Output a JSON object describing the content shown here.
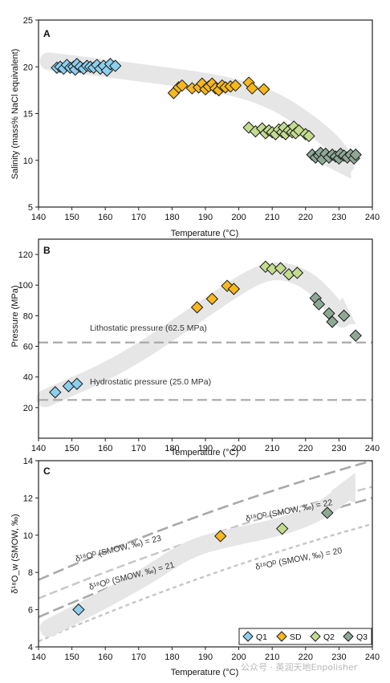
{
  "colors": {
    "Q1": "#8ccfee",
    "SD": "#f6b81c",
    "Q2": "#c3dc8f",
    "Q3": "#8ea896",
    "arrow": "#e6e6e6",
    "dash_dark": "#a9a9a9",
    "dash_light": "#c6c6c6"
  },
  "watermark": "公众号 · 英润天地Enpolisher",
  "chart_data": [
    {
      "panel": "A",
      "type": "scatter",
      "xlabel": "Temperature (°C)",
      "ylabel": "Salinity (mass% NaCl equivalent)",
      "xlim": [
        140,
        240
      ],
      "ylim": [
        5,
        25
      ],
      "xticks": [
        140,
        150,
        160,
        170,
        180,
        190,
        200,
        210,
        220,
        230,
        240
      ],
      "yticks": [
        5,
        10,
        15,
        20,
        25
      ],
      "series": [
        {
          "name": "Q1",
          "points": [
            [
              145.5,
              19.9
            ],
            [
              146.5,
              20.0
            ],
            [
              147.5,
              19.8
            ],
            [
              148.5,
              20.2
            ],
            [
              149.5,
              19.9
            ],
            [
              150.5,
              20.0
            ],
            [
              151,
              19.7
            ],
            [
              151.5,
              20.3
            ],
            [
              152.5,
              20.0
            ],
            [
              153.5,
              19.8
            ],
            [
              154.5,
              20.1
            ],
            [
              155.5,
              20.0
            ],
            [
              156.5,
              19.9
            ],
            [
              157.5,
              20.2
            ],
            [
              158.5,
              19.8
            ],
            [
              159.5,
              20.1
            ],
            [
              160.5,
              19.6
            ],
            [
              161.5,
              20.3
            ],
            [
              163,
              20.1
            ]
          ]
        },
        {
          "name": "SD",
          "points": [
            [
              180.5,
              17.2
            ],
            [
              182,
              17.8
            ],
            [
              183,
              18.0
            ],
            [
              186,
              17.7
            ],
            [
              188,
              17.8
            ],
            [
              189,
              18.2
            ],
            [
              190,
              17.6
            ],
            [
              191,
              17.9
            ],
            [
              192,
              18.2
            ],
            [
              193,
              17.7
            ],
            [
              194,
              17.5
            ],
            [
              195,
              18.0
            ],
            [
              196,
              17.8
            ],
            [
              197.5,
              17.9
            ],
            [
              199,
              18.0
            ],
            [
              203,
              18.3
            ],
            [
              204,
              17.7
            ],
            [
              207.5,
              17.6
            ]
          ]
        },
        {
          "name": "Q2",
          "points": [
            [
              203,
              13.5
            ],
            [
              205,
              13.1
            ],
            [
              207,
              13.4
            ],
            [
              208,
              12.9
            ],
            [
              209,
              13.2
            ],
            [
              210,
              13.0
            ],
            [
              211,
              12.8
            ],
            [
              212,
              13.3
            ],
            [
              213,
              13.0
            ],
            [
              213.5,
              13.5
            ],
            [
              214,
              12.8
            ],
            [
              215,
              13.2
            ],
            [
              216,
              13.0
            ],
            [
              216.5,
              13.6
            ],
            [
              217,
              12.9
            ],
            [
              218,
              13.2
            ],
            [
              220,
              12.8
            ],
            [
              221,
              12.6
            ]
          ]
        },
        {
          "name": "Q3",
          "points": [
            [
              222,
              10.6
            ],
            [
              223,
              10.3
            ],
            [
              224,
              10.5
            ],
            [
              224.5,
              10.8
            ],
            [
              225,
              10.1
            ],
            [
              226,
              10.7
            ],
            [
              227,
              10.3
            ],
            [
              228,
              10.6
            ],
            [
              229,
              10.4
            ],
            [
              230,
              10.2
            ],
            [
              230.5,
              10.7
            ],
            [
              231.5,
              10.5
            ],
            [
              232.5,
              10.3
            ],
            [
              233.5,
              10.6
            ],
            [
              234.5,
              10.2
            ],
            [
              235,
              10.6
            ]
          ]
        }
      ]
    },
    {
      "panel": "B",
      "type": "scatter",
      "xlabel": "Temperature (°C)",
      "ylabel": "Pressure (MPa)",
      "xlim": [
        140,
        240
      ],
      "ylim": [
        0,
        130
      ],
      "xticks": [
        140,
        150,
        160,
        170,
        180,
        190,
        200,
        210,
        220,
        230,
        240
      ],
      "yticks": [
        20,
        40,
        60,
        80,
        100,
        120
      ],
      "reference_lines": [
        {
          "label": "Lithostatic pressure (62.5 MPa)",
          "y": 62.5
        },
        {
          "label": "Hydrostatic pressure (25.0 MPa)",
          "y": 25.0
        }
      ],
      "series": [
        {
          "name": "Q1",
          "points": [
            [
              145,
              30
            ],
            [
              149,
              34
            ],
            [
              151.5,
              35.5
            ]
          ]
        },
        {
          "name": "SD",
          "points": [
            [
              187.5,
              85.5
            ],
            [
              192,
              91
            ],
            [
              196.5,
              99.5
            ],
            [
              198.5,
              97.5
            ]
          ]
        },
        {
          "name": "Q2",
          "points": [
            [
              208,
              112
            ],
            [
              210,
              110.5
            ],
            [
              212.5,
              111
            ],
            [
              215,
              107
            ],
            [
              217.5,
              108
            ]
          ]
        },
        {
          "name": "Q3",
          "points": [
            [
              223,
              91.5
            ],
            [
              224,
              87.5
            ],
            [
              227,
              81.5
            ],
            [
              228,
              76
            ],
            [
              231.5,
              80
            ],
            [
              235,
              67
            ]
          ]
        }
      ]
    },
    {
      "panel": "C",
      "type": "scatter",
      "xlabel": "Temperature (°C)",
      "ylabel": "δ¹⁸O_w (SMOW, ‰)",
      "xlim": [
        140,
        240
      ],
      "ylim": [
        4,
        14
      ],
      "xticks": [
        140,
        150,
        160,
        170,
        180,
        190,
        200,
        210,
        220,
        230,
        240
      ],
      "yticks": [
        4,
        6,
        8,
        10,
        12,
        14
      ],
      "isopleths": [
        {
          "label": "δ¹⁸Oᴰ (SMOW, ‰) = 23",
          "value": 23
        },
        {
          "label": "δ¹⁸Oᴰ (SMOW, ‰) = 22",
          "value": 22
        },
        {
          "label": "δ¹⁸Oᴰ (SMOW, ‰) = 21",
          "value": 21
        },
        {
          "label": "δ¹⁸Oᴰ (SMOW, ‰) = 20",
          "value": 20
        }
      ],
      "legend": {
        "position": "bottom-right",
        "entries": [
          "Q1",
          "SD",
          "Q2",
          "Q3"
        ]
      },
      "series": [
        {
          "name": "Q1",
          "points": [
            [
              152,
              6.0
            ]
          ]
        },
        {
          "name": "SD",
          "points": [
            [
              194.5,
              9.95
            ]
          ]
        },
        {
          "name": "Q2",
          "points": [
            [
              213,
              10.35
            ]
          ]
        },
        {
          "name": "Q3",
          "points": [
            [
              226.5,
              11.2
            ]
          ]
        }
      ]
    }
  ]
}
